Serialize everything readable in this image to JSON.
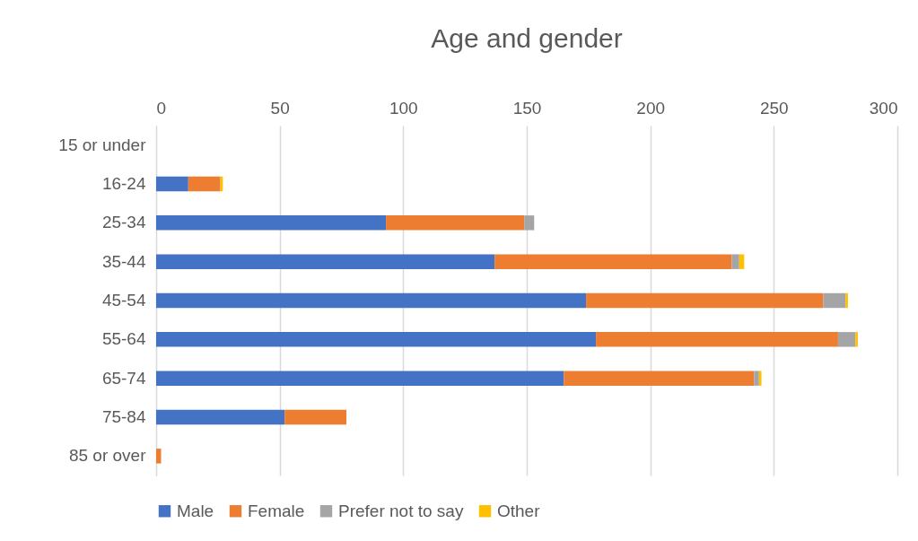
{
  "chart_data": {
    "type": "bar",
    "orientation": "horizontal",
    "stacked": true,
    "title": "Age and gender",
    "categories": [
      "15 or under",
      "16-24",
      "25-34",
      "35-44",
      "45-54",
      "55-64",
      "65-74",
      "75-84",
      "85 or over"
    ],
    "series": [
      {
        "name": "Male",
        "color": "#4472c4",
        "values": [
          0,
          13,
          93,
          137,
          174,
          178,
          165,
          52,
          0
        ]
      },
      {
        "name": "Female",
        "color": "#ed7d31",
        "values": [
          0,
          13,
          56,
          96,
          96,
          98,
          77,
          25,
          2
        ]
      },
      {
        "name": "Prefer not to say",
        "color": "#a5a5a5",
        "values": [
          0,
          0,
          4,
          3,
          9,
          7,
          2,
          0,
          0
        ]
      },
      {
        "name": "Other",
        "color": "#ffc000",
        "values": [
          0,
          1,
          0,
          2,
          1,
          1,
          1,
          0,
          0
        ]
      }
    ],
    "xlim": [
      0,
      300
    ],
    "xticks": [
      0,
      50,
      100,
      150,
      200,
      250,
      300
    ],
    "grid": "x",
    "legend": "bottom"
  }
}
